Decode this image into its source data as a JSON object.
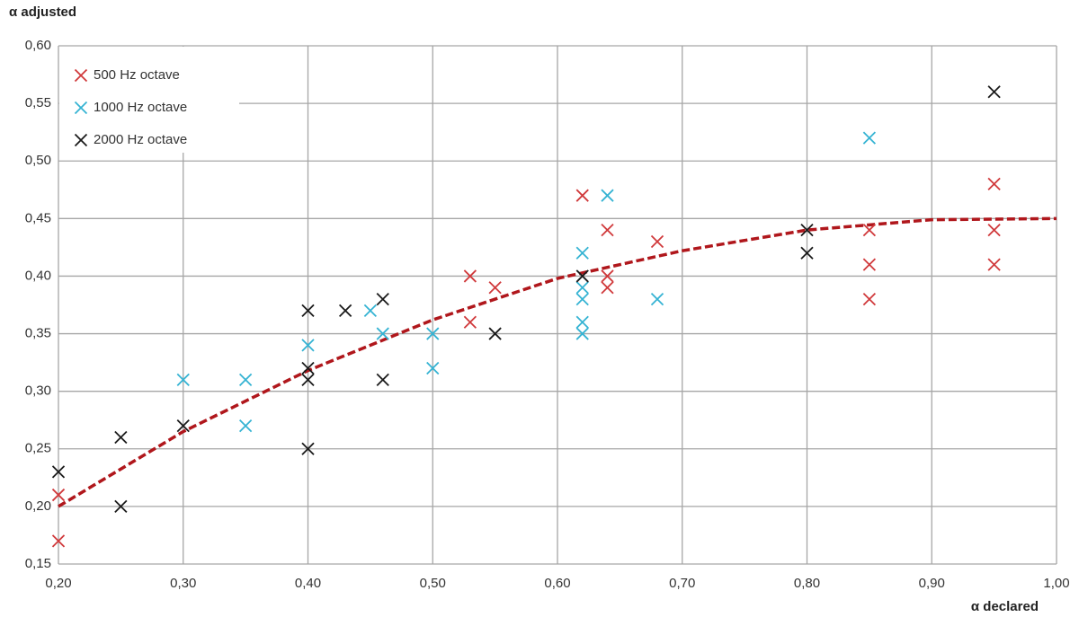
{
  "chart_data": {
    "type": "scatter",
    "y_label": "α adjusted",
    "x_label": "α declared",
    "xlim": [
      0.2,
      1.0
    ],
    "ylim": [
      0.15,
      0.6
    ],
    "xticks": [
      {
        "value": 0.2,
        "label": "0,20"
      },
      {
        "value": 0.3,
        "label": "0,30"
      },
      {
        "value": 0.4,
        "label": "0,40"
      },
      {
        "value": 0.5,
        "label": "0,50"
      },
      {
        "value": 0.6,
        "label": "0,60"
      },
      {
        "value": 0.7,
        "label": "0,70"
      },
      {
        "value": 0.8,
        "label": "0,80"
      },
      {
        "value": 0.9,
        "label": "0,90"
      },
      {
        "value": 1.0,
        "label": "1,00"
      }
    ],
    "yticks": [
      {
        "value": 0.15,
        "label": "0,15"
      },
      {
        "value": 0.2,
        "label": "0,20"
      },
      {
        "value": 0.25,
        "label": "0,25"
      },
      {
        "value": 0.3,
        "label": "0,30"
      },
      {
        "value": 0.35,
        "label": "0,35"
      },
      {
        "value": 0.4,
        "label": "0,40"
      },
      {
        "value": 0.45,
        "label": "0,45"
      },
      {
        "value": 0.5,
        "label": "0,50"
      },
      {
        "value": 0.55,
        "label": "0,55"
      },
      {
        "value": 0.6,
        "label": "0,60"
      }
    ],
    "grid": true,
    "legend": "upper left",
    "series": [
      {
        "name": "500 Hz octave",
        "color": "#d0393b",
        "x": [
          0.2,
          0.2,
          0.53,
          0.53,
          0.55,
          0.62,
          0.64,
          0.64,
          0.64,
          0.68,
          0.85,
          0.85,
          0.85,
          0.95,
          0.95,
          0.95
        ],
        "y": [
          0.21,
          0.17,
          0.4,
          0.36,
          0.39,
          0.47,
          0.44,
          0.4,
          0.39,
          0.43,
          0.44,
          0.41,
          0.38,
          0.48,
          0.44,
          0.41
        ]
      },
      {
        "name": "1000 Hz octave",
        "color": "#35b3d3",
        "x": [
          0.3,
          0.35,
          0.35,
          0.4,
          0.45,
          0.46,
          0.5,
          0.5,
          0.62,
          0.62,
          0.62,
          0.62,
          0.62,
          0.64,
          0.68,
          0.85
        ],
        "y": [
          0.31,
          0.31,
          0.27,
          0.34,
          0.37,
          0.35,
          0.35,
          0.32,
          0.42,
          0.39,
          0.38,
          0.36,
          0.35,
          0.47,
          0.38,
          0.52
        ]
      },
      {
        "name": "2000 Hz octave",
        "color": "#1a1a1a",
        "x": [
          0.2,
          0.25,
          0.25,
          0.3,
          0.4,
          0.4,
          0.4,
          0.4,
          0.43,
          0.46,
          0.46,
          0.55,
          0.62,
          0.8,
          0.8,
          0.95
        ],
        "y": [
          0.23,
          0.26,
          0.2,
          0.27,
          0.37,
          0.32,
          0.31,
          0.25,
          0.37,
          0.38,
          0.31,
          0.35,
          0.4,
          0.44,
          0.42,
          0.56
        ]
      }
    ],
    "trendline": {
      "color": "#b0171c",
      "x": [
        0.2,
        0.3,
        0.4,
        0.5,
        0.6,
        0.7,
        0.8,
        0.9,
        1.0
      ],
      "y": [
        0.2,
        0.265,
        0.318,
        0.362,
        0.398,
        0.422,
        0.44,
        0.449,
        0.45
      ]
    }
  }
}
